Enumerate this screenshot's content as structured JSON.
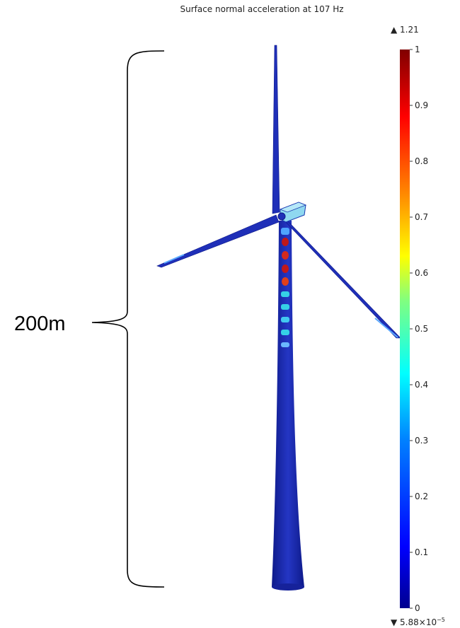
{
  "title": "Surface normal acceleration at 107 Hz",
  "dimension": {
    "label": "200m"
  },
  "colorbar": {
    "max_marker": "▲ 1.21",
    "min_marker_base": "▼ 5.88×10",
    "min_marker_exp": "−5",
    "range": [
      0,
      1
    ],
    "ticks": [
      {
        "value": 1,
        "label": "1"
      },
      {
        "value": 0.9,
        "label": "0.9"
      },
      {
        "value": 0.8,
        "label": "0.8"
      },
      {
        "value": 0.7,
        "label": "0.7"
      },
      {
        "value": 0.6,
        "label": "0.6"
      },
      {
        "value": 0.5,
        "label": "0.5"
      },
      {
        "value": 0.4,
        "label": "0.4"
      },
      {
        "value": 0.3,
        "label": "0.3"
      },
      {
        "value": 0.2,
        "label": "0.2"
      },
      {
        "value": 0.1,
        "label": "0.1"
      },
      {
        "value": 0,
        "label": "0"
      }
    ],
    "colors": [
      "#00008f",
      "#0000ff",
      "#0080ff",
      "#00ffff",
      "#80ff80",
      "#ffff00",
      "#ff8000",
      "#ff0000",
      "#800000"
    ]
  },
  "colors": {
    "structure": "#1f2fb8",
    "structure_dark": "#0e1a8a",
    "hotspot": "#c0181a",
    "mid": "#35d0e6",
    "light": "#8fd8f0"
  }
}
